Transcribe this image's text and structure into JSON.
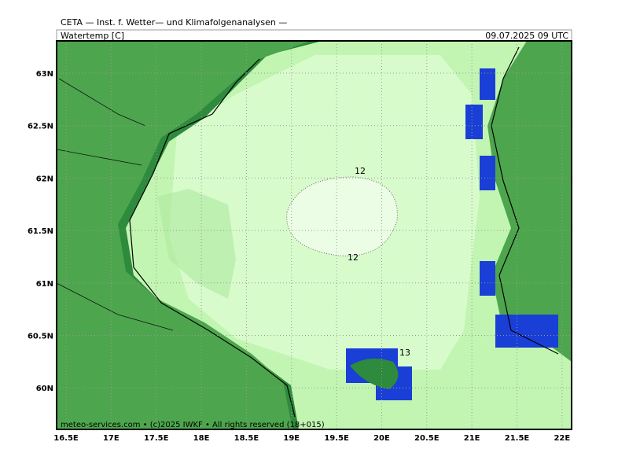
{
  "header": {
    "title": "CETA — Inst. f. Wetter— und Klimafolgenanalysen —",
    "variable": "Watertemp [C]",
    "valid_time": "09.07.2025 09 UTC"
  },
  "map": {
    "lon_labels": [
      "16.5E",
      "17E",
      "17.5E",
      "18E",
      "18.5E",
      "19E",
      "19.5E",
      "20E",
      "20.5E",
      "21E",
      "21.5E",
      "22E"
    ],
    "lat_labels": [
      "63N",
      "62.5N",
      "62N",
      "61.5N",
      "61N",
      "60.5N",
      "60N"
    ],
    "contour_labels": [
      "12",
      "12",
      "13"
    ]
  },
  "footer": "meteo-services.com • (c)2025 IWKF • All rights reserved (18+015)"
}
